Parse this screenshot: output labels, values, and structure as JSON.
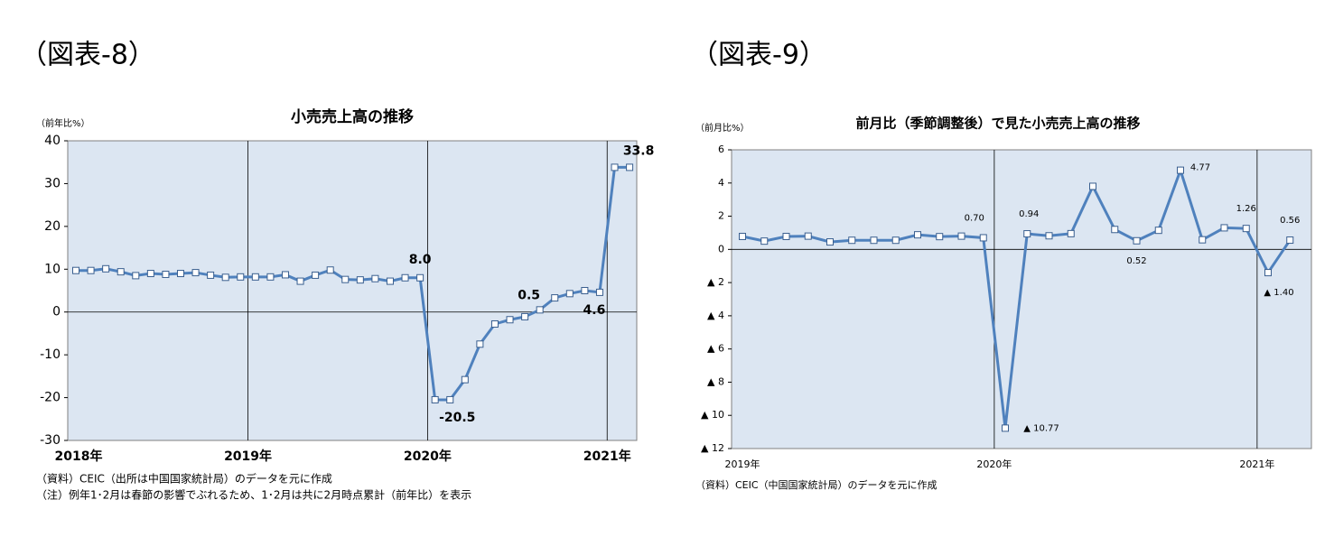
{
  "chart_data": [
    {
      "type": "line",
      "label": "（図表-8）",
      "title": "小売売上高の推移",
      "y_axis_label": "（前年比%）",
      "categories": [
        "2018年",
        null,
        null,
        null,
        null,
        null,
        null,
        null,
        null,
        null,
        null,
        null,
        "2019年",
        null,
        null,
        null,
        null,
        null,
        null,
        null,
        null,
        null,
        null,
        null,
        "2020年",
        null,
        null,
        null,
        null,
        null,
        null,
        null,
        null,
        null,
        null,
        null,
        "2021年",
        null
      ],
      "series": [
        {
          "name": null,
          "color": "#4f81bd",
          "values": [
            9.7,
            9.7,
            10.1,
            9.4,
            8.5,
            9.0,
            8.8,
            9.0,
            9.2,
            8.6,
            8.1,
            8.2,
            8.2,
            8.2,
            8.7,
            7.2,
            8.6,
            9.8,
            7.6,
            7.5,
            7.8,
            7.2,
            8.0,
            8.0,
            -20.5,
            -20.5,
            -15.8,
            -7.5,
            -2.8,
            -1.8,
            -1.1,
            0.5,
            3.3,
            4.3,
            5.0,
            4.6,
            33.8,
            33.8
          ],
          "value_labels": [
            null,
            null,
            null,
            null,
            null,
            null,
            null,
            null,
            null,
            null,
            null,
            null,
            null,
            null,
            null,
            null,
            null,
            null,
            null,
            null,
            null,
            null,
            null,
            "8.0",
            null,
            "-20.5",
            null,
            null,
            null,
            null,
            null,
            "0.5",
            null,
            null,
            null,
            "4.6",
            null,
            "33.8"
          ]
        }
      ],
      "ylim": [
        -30,
        40
      ],
      "yticks": [
        -30,
        -20,
        -10,
        0,
        10,
        20,
        30,
        40
      ],
      "grid": false,
      "notes": [
        "（資料）CEIC（出所は中国国家統計局）のデータを元に作成",
        "（注）例年1･2月は春節の影響でぶれるため、1･2月は共に2月時点累計（前年比）を表示"
      ]
    },
    {
      "type": "line",
      "label": "（図表-9）",
      "title": "前月比（季節調整後）で見た小売売上高の推移",
      "y_axis_label": "（前月比%）",
      "categories": [
        "2019年",
        null,
        null,
        null,
        null,
        null,
        null,
        null,
        null,
        null,
        null,
        null,
        "2020年",
        null,
        null,
        null,
        null,
        null,
        null,
        null,
        null,
        null,
        null,
        null,
        "2021年",
        null
      ],
      "series": [
        {
          "name": null,
          "color": "#4f81bd",
          "values": [
            0.78,
            0.5,
            0.78,
            0.8,
            0.45,
            0.55,
            0.55,
            0.55,
            0.88,
            0.77,
            0.8,
            0.7,
            -10.77,
            0.94,
            0.82,
            0.95,
            3.8,
            1.2,
            0.52,
            1.15,
            4.77,
            0.58,
            1.3,
            1.26,
            -1.4,
            0.56
          ],
          "value_labels": [
            null,
            null,
            null,
            null,
            null,
            null,
            null,
            null,
            null,
            null,
            null,
            "0.70",
            "▲ 10.77",
            "0.94",
            null,
            null,
            null,
            null,
            "0.52",
            null,
            "4.77",
            null,
            null,
            "1.26",
            "▲ 1.40",
            "0.56"
          ]
        }
      ],
      "ylim": [
        -12,
        6
      ],
      "yticks": [
        {
          "value": -12,
          "label": "▲ 12"
        },
        {
          "value": -10,
          "label": "▲ 10"
        },
        {
          "value": -8,
          "label": "▲ 8"
        },
        {
          "value": -6,
          "label": "▲ 6"
        },
        {
          "value": -4,
          "label": "▲ 4"
        },
        {
          "value": -2,
          "label": "▲ 2"
        },
        0,
        2,
        4,
        6
      ],
      "grid": false,
      "notes": [
        "（資料）CEIC（中国国家統計局）のデータを元に作成"
      ]
    }
  ]
}
